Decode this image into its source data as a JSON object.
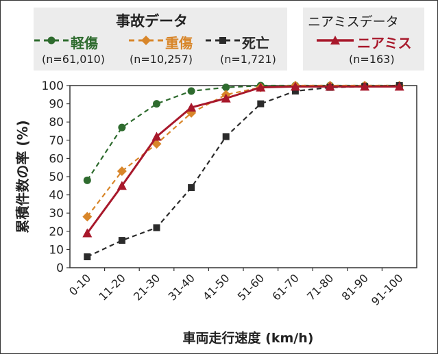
{
  "chart_data": {
    "type": "line",
    "ylabel": "累積件数の率 (%)",
    "xlabel": "車両走行速度 (km/h)",
    "categories": [
      "0-10",
      "11-20",
      "21-30",
      "31-40",
      "41-50",
      "51-60",
      "61-70",
      "71-80",
      "81-90",
      "91-100"
    ],
    "ylim": [
      0,
      100
    ],
    "yticks": [
      0,
      10,
      20,
      30,
      40,
      50,
      60,
      70,
      80,
      90,
      100
    ],
    "grid": false,
    "legend_groups": [
      {
        "title": "事故データ",
        "position": "top-left"
      },
      {
        "title": "ニアミスデータ",
        "position": "top-right"
      }
    ],
    "series": [
      {
        "name": "軽傷",
        "n_label": "(n=61,010)",
        "color": "#2e6b2e",
        "dash": true,
        "marker": "circle",
        "group": 0,
        "values": [
          48,
          77,
          90,
          97,
          99,
          100,
          100,
          100,
          100,
          100
        ]
      },
      {
        "name": "重傷",
        "n_label": "(n=10,257)",
        "color": "#d8862a",
        "dash": true,
        "marker": "diamond",
        "group": 0,
        "values": [
          28,
          53,
          68,
          85,
          95,
          99,
          100,
          100,
          100,
          100
        ]
      },
      {
        "name": "死亡",
        "n_label": "(n=1,721)",
        "color": "#2b2b2b",
        "dash": true,
        "marker": "square",
        "group": 0,
        "values": [
          6,
          15,
          22,
          44,
          72,
          90,
          97,
          99,
          99.5,
          100
        ]
      },
      {
        "name": "ニアミス",
        "n_label": "(n=163)",
        "color": "#a8182b",
        "dash": false,
        "marker": "triangle",
        "group": 1,
        "values": [
          19,
          45,
          72,
          88,
          93,
          99,
          99.5,
          99.5,
          99.5,
          99.5
        ]
      }
    ]
  }
}
